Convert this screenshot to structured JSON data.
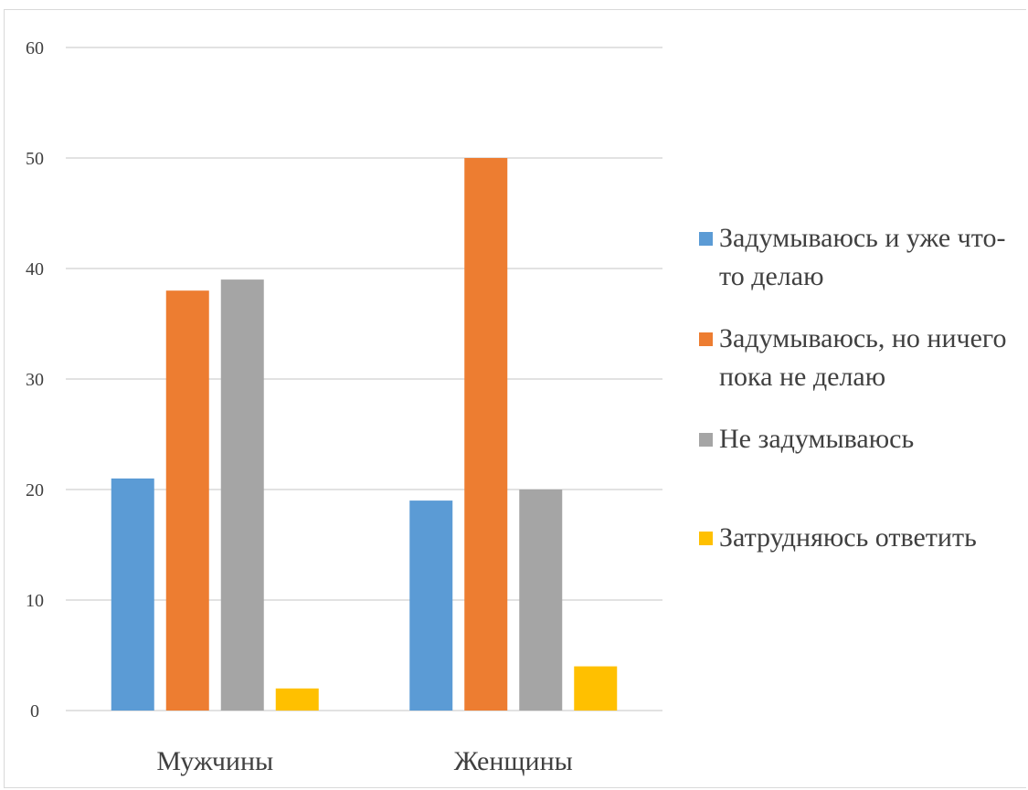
{
  "chart_data": {
    "type": "bar",
    "categories": [
      "Мужчины",
      "Женщины"
    ],
    "series": [
      {
        "name": "Задумываюсь и уже что-то делаю",
        "color": "#5b9bd5",
        "values": [
          21,
          19
        ]
      },
      {
        "name": "Задумываюсь, но ничего пока не делаю",
        "color": "#ed7d31",
        "values": [
          38,
          50
        ]
      },
      {
        "name": "Не задумываюсь",
        "color": "#a5a5a5",
        "values": [
          39,
          20
        ]
      },
      {
        "name": "Затрудняюсь ответить",
        "color": "#ffc000",
        "values": [
          2,
          4
        ]
      }
    ],
    "ylim": [
      0,
      60
    ],
    "yticks": [
      "0",
      "10",
      "20",
      "30",
      "40",
      "50",
      "60"
    ],
    "grid": true,
    "legend_position": "right"
  }
}
